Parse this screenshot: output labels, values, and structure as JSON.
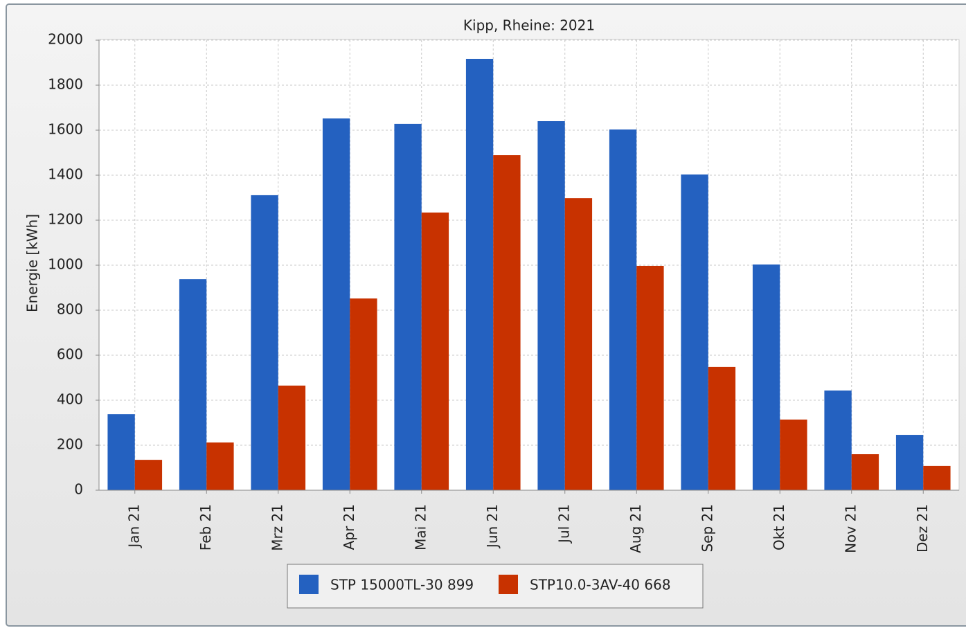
{
  "chart_data": {
    "type": "bar",
    "title": "Kipp, Rheine: 2021",
    "ylabel": "Energie [kWh]",
    "categories": [
      "Jan 21",
      "Feb 21",
      "Mrz 21",
      "Apr 21",
      "Mai 21",
      "Jun 21",
      "Jul 21",
      "Aug 21",
      "Sep 21",
      "Okt 21",
      "Nov 21",
      "Dez 21"
    ],
    "series": [
      {
        "name": "STP 15000TL-30 899",
        "color": "#2461c0",
        "values": [
          338,
          938,
          1311,
          1652,
          1628,
          1917,
          1640,
          1603,
          1403,
          1003,
          443,
          246
        ]
      },
      {
        "name": "STP10.0-3AV-40 668",
        "color": "#c83200",
        "values": [
          135,
          212,
          465,
          852,
          1234,
          1489,
          1298,
          997,
          548,
          314,
          160,
          108
        ]
      }
    ],
    "ylim": [
      0,
      2000
    ],
    "yticks": [
      0,
      200,
      400,
      600,
      800,
      1000,
      1200,
      1400,
      1600,
      1800,
      2000
    ],
    "grid": true
  }
}
